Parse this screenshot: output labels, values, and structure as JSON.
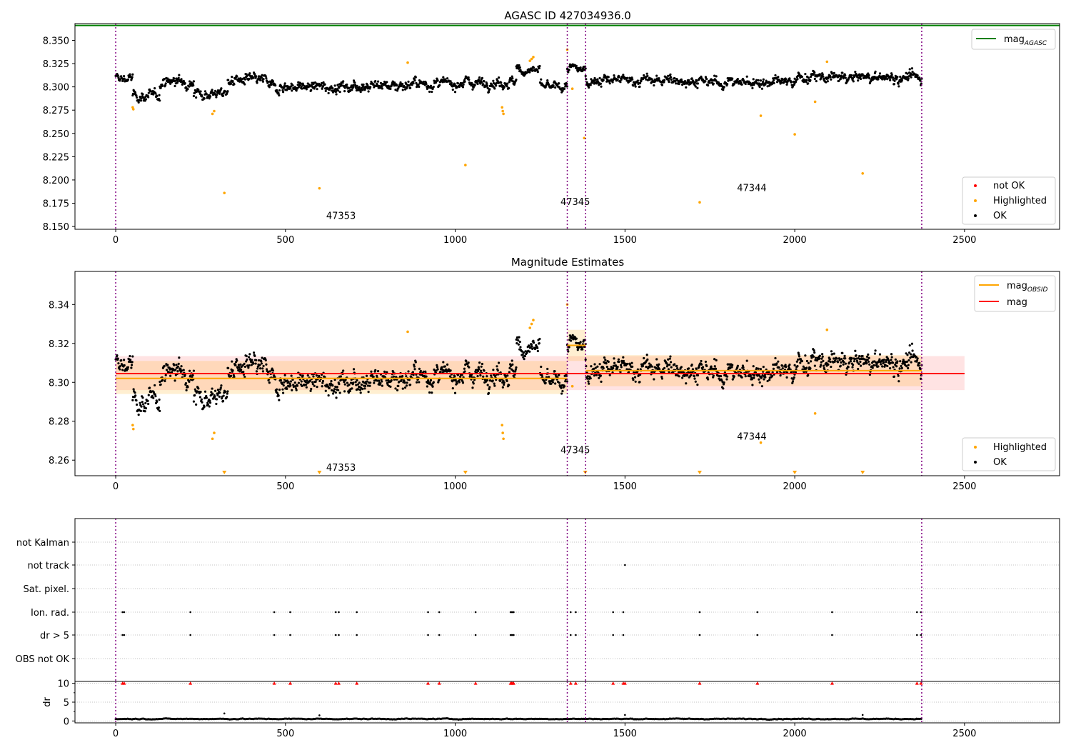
{
  "chart_data": [
    {
      "id": "top",
      "type": "scatter",
      "title": "AGASC ID 427034936.0",
      "xlim": [
        -120,
        2780
      ],
      "ylim": [
        8.147,
        8.368
      ],
      "xticks": [
        0,
        500,
        1000,
        1500,
        2000,
        2500
      ],
      "yticks": [
        8.15,
        8.175,
        8.2,
        8.225,
        8.25,
        8.275,
        8.3,
        8.325,
        8.35
      ],
      "ytick_labels": [
        "8.150",
        "8.175",
        "8.200",
        "8.225",
        "8.250",
        "8.275",
        "8.300",
        "8.325",
        "8.350"
      ],
      "obs_boundaries": [
        0,
        1330,
        1384,
        2374
      ],
      "annotations": [
        {
          "text": "47353",
          "x": 620,
          "y": 8.158
        },
        {
          "text": "47345",
          "x": 1310,
          "y": 8.173
        },
        {
          "text": "47344",
          "x": 1830,
          "y": 8.188
        }
      ],
      "agasc_mag": 8.366,
      "segments": [
        {
          "x0": 0,
          "x1": 50,
          "base": 8.309,
          "amp": 0.012
        },
        {
          "x0": 50,
          "x1": 130,
          "base": 8.29,
          "amp": 0.012
        },
        {
          "x0": 130,
          "x1": 230,
          "base": 8.306,
          "amp": 0.012
        },
        {
          "x0": 230,
          "x1": 330,
          "base": 8.293,
          "amp": 0.012
        },
        {
          "x0": 330,
          "x1": 450,
          "base": 8.307,
          "amp": 0.013
        },
        {
          "x0": 450,
          "x1": 700,
          "base": 8.3,
          "amp": 0.012
        },
        {
          "x0": 700,
          "x1": 850,
          "base": 8.302,
          "amp": 0.013
        },
        {
          "x0": 850,
          "x1": 1000,
          "base": 8.303,
          "amp": 0.012
        },
        {
          "x0": 1000,
          "x1": 1180,
          "base": 8.305,
          "amp": 0.012
        },
        {
          "x0": 1180,
          "x1": 1250,
          "base": 8.318,
          "amp": 0.012
        },
        {
          "x0": 1250,
          "x1": 1330,
          "base": 8.3,
          "amp": 0.01
        },
        {
          "x0": 1330,
          "x1": 1384,
          "base": 8.319,
          "amp": 0.011
        },
        {
          "x0": 1384,
          "x1": 1700,
          "base": 8.307,
          "amp": 0.012
        },
        {
          "x0": 1700,
          "x1": 2000,
          "base": 8.305,
          "amp": 0.012
        },
        {
          "x0": 2000,
          "x1": 2374,
          "base": 8.31,
          "amp": 0.012
        }
      ],
      "highlighted": [
        [
          50,
          8.278
        ],
        [
          52,
          8.276
        ],
        [
          285,
          8.271
        ],
        [
          290,
          8.274
        ],
        [
          320,
          8.186
        ],
        [
          600,
          8.191
        ],
        [
          860,
          8.326
        ],
        [
          1030,
          8.216
        ],
        [
          1138,
          8.278
        ],
        [
          1140,
          8.274
        ],
        [
          1142,
          8.271
        ],
        [
          1220,
          8.328
        ],
        [
          1225,
          8.33
        ],
        [
          1230,
          8.332
        ],
        [
          1330,
          8.34
        ],
        [
          1345,
          8.298
        ],
        [
          1380,
          8.245
        ],
        [
          1720,
          8.176
        ],
        [
          1900,
          8.269
        ],
        [
          2000,
          8.249
        ],
        [
          2060,
          8.284
        ],
        [
          2095,
          8.327
        ],
        [
          2200,
          8.207
        ]
      ],
      "legends": [
        {
          "position": "upper-right",
          "entries": [
            {
              "label": "mag",
              "sub": "AGASC",
              "marker": "line",
              "color": "#008000"
            }
          ]
        },
        {
          "position": "lower-right",
          "entries": [
            {
              "label": "not OK",
              "marker": "dot",
              "color": "#ff0000"
            },
            {
              "label": "Highlighted",
              "marker": "dot",
              "color": "#ffa500"
            },
            {
              "label": "OK",
              "marker": "dot",
              "color": "#000000"
            }
          ]
        }
      ]
    },
    {
      "id": "mid",
      "type": "scatter",
      "title": "Magnitude Estimates",
      "xlim": [
        -120,
        2780
      ],
      "ylim": [
        8.252,
        8.357
      ],
      "xticks": [
        0,
        500,
        1000,
        1500,
        2000,
        2500
      ],
      "yticks": [
        8.26,
        8.28,
        8.3,
        8.32,
        8.34
      ],
      "ytick_labels": [
        "8.26",
        "8.28",
        "8.30",
        "8.32",
        "8.34"
      ],
      "obs_boundaries": [
        0,
        1330,
        1384,
        2374
      ],
      "annotations": [
        {
          "text": "47353",
          "x": 620,
          "y": 8.2545
        },
        {
          "text": "47345",
          "x": 1310,
          "y": 8.2635
        },
        {
          "text": "47344",
          "x": 1830,
          "y": 8.2705
        }
      ],
      "mag": {
        "value": 8.3045,
        "band": [
          8.296,
          8.3135
        ],
        "x0": 0,
        "x1": 2500
      },
      "mag_obsid": [
        {
          "x0": 0,
          "x1": 1330,
          "value": 8.302,
          "band": [
            8.294,
            8.311
          ]
        },
        {
          "x0": 1330,
          "x1": 1384,
          "value": 8.319,
          "band": [
            8.311,
            8.327
          ]
        },
        {
          "x0": 1384,
          "x1": 2374,
          "value": 8.306,
          "band": [
            8.298,
            8.314
          ]
        }
      ],
      "clipped_markers_x": [
        320,
        600,
        1030,
        1383,
        1720,
        2000,
        2200
      ],
      "legends": [
        {
          "position": "upper-right",
          "entries": [
            {
              "label": "mag",
              "sub": "OBSID",
              "marker": "line",
              "color": "#ffa500"
            },
            {
              "label": "mag",
              "marker": "line",
              "color": "#ff0000"
            }
          ]
        },
        {
          "position": "lower-right",
          "entries": [
            {
              "label": "Highlighted",
              "marker": "dot",
              "color": "#ffa500"
            },
            {
              "label": "OK",
              "marker": "dot",
              "color": "#000000"
            }
          ]
        }
      ]
    },
    {
      "id": "flags",
      "type": "scatter",
      "xlim": [
        -120,
        2780
      ],
      "obs_boundaries": [
        0,
        1330,
        1384,
        2374
      ],
      "rows": [
        "not Kalman",
        "not track",
        "Sat. pixel.",
        "Ion. rad.",
        "dr > 5",
        "OBS not OK"
      ],
      "flag_points": {
        "not track": [
          1500
        ],
        "Ion. rad.": [
          20,
          25,
          220,
          467,
          514,
          648,
          657,
          710,
          920,
          953,
          1060,
          1163,
          1166,
          1169,
          1172,
          1340,
          1355,
          1465,
          1495,
          1720,
          1890,
          2110,
          2360,
          2372
        ],
        "dr > 5": [
          20,
          25,
          220,
          467,
          514,
          648,
          657,
          710,
          920,
          953,
          1060,
          1163,
          1166,
          1169,
          1172,
          1340,
          1355,
          1465,
          1495,
          1720,
          1890,
          2110,
          2360,
          2372
        ]
      }
    },
    {
      "id": "dr",
      "type": "scatter",
      "ylabel": "dr",
      "xlim": [
        -120,
        2780
      ],
      "ylim": [
        -0.5,
        10.5
      ],
      "xticks": [
        0,
        500,
        1000,
        1500,
        2000,
        2500
      ],
      "yticks": [
        0,
        5,
        10
      ],
      "obs_boundaries": [
        0,
        1330,
        1384,
        2374
      ],
      "clipped_x": [
        20,
        25,
        220,
        467,
        514,
        648,
        657,
        710,
        920,
        953,
        1060,
        1163,
        1166,
        1169,
        1172,
        1340,
        1355,
        1465,
        1495,
        1500,
        1720,
        1890,
        2110,
        2360,
        2372
      ],
      "outliers": [
        [
          320,
          2.0
        ],
        [
          600,
          1.5
        ],
        [
          1500,
          1.6
        ],
        [
          2200,
          1.6
        ]
      ]
    }
  ]
}
